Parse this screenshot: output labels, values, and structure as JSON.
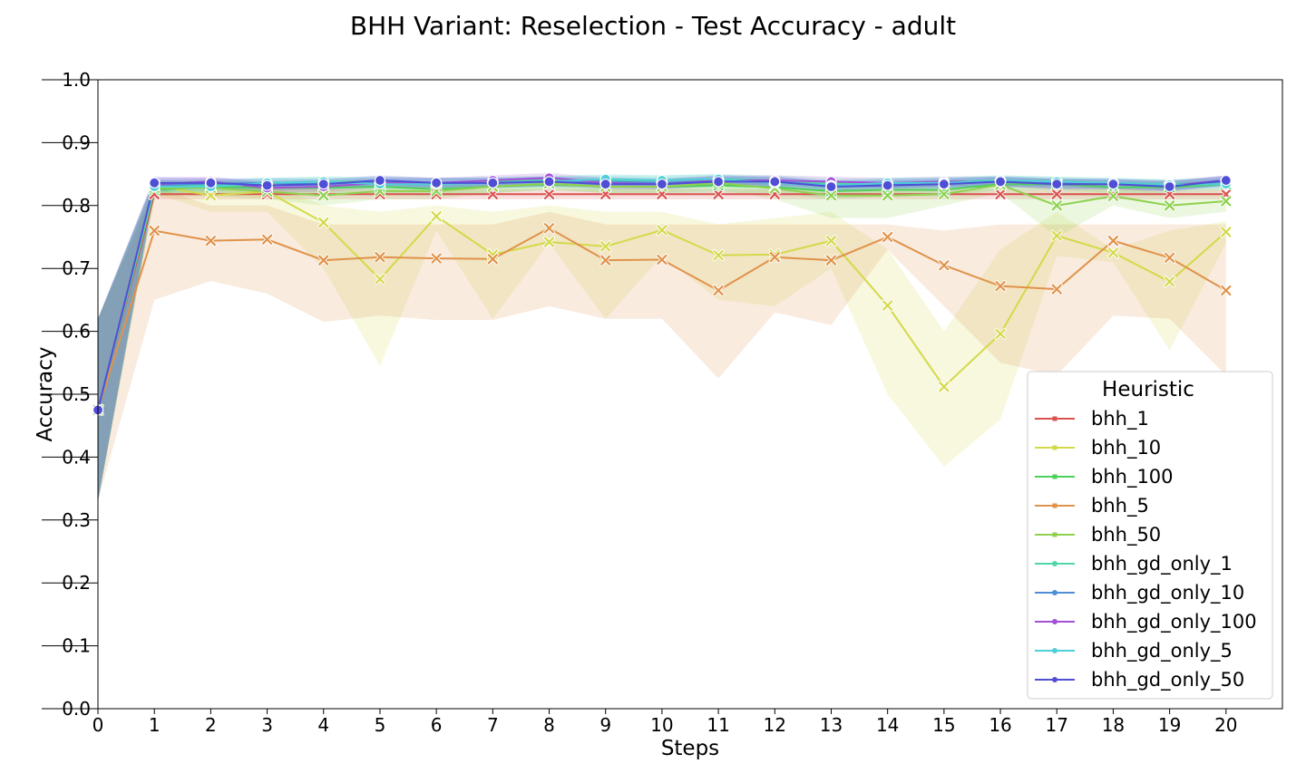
{
  "chart_data": {
    "type": "line",
    "title": "BHH Variant: Reselection - Test Accuracy - adult",
    "xlabel": "Steps",
    "ylabel": "Accuracy",
    "xlim": [
      0,
      21
    ],
    "ylim": [
      0.0,
      1.0
    ],
    "x": [
      0,
      1,
      2,
      3,
      4,
      5,
      6,
      7,
      8,
      9,
      10,
      11,
      12,
      13,
      14,
      15,
      16,
      17,
      18,
      19,
      20
    ],
    "xticks": [
      "0",
      "1",
      "2",
      "3",
      "4",
      "5",
      "6",
      "7",
      "8",
      "9",
      "10",
      "11",
      "12",
      "13",
      "14",
      "15",
      "16",
      "17",
      "18",
      "19",
      "20"
    ],
    "yticks": [
      "0.0",
      "0.1",
      "0.2",
      "0.3",
      "0.4",
      "0.5",
      "0.6",
      "0.7",
      "0.8",
      "0.9",
      "1.0"
    ],
    "grid": false,
    "legend": {
      "title": "Heuristic",
      "position": "lower-right"
    },
    "series": [
      {
        "name": "bhh_1",
        "color": "#d9534f",
        "marker": "x",
        "values": [
          0.475,
          0.818,
          0.818,
          0.818,
          0.818,
          0.818,
          0.818,
          0.818,
          0.818,
          0.818,
          0.818,
          0.818,
          0.818,
          0.818,
          0.818,
          0.818,
          0.818,
          0.818,
          0.818,
          0.818,
          0.818
        ],
        "lower": [
          0.33,
          0.81,
          0.81,
          0.81,
          0.81,
          0.81,
          0.81,
          0.81,
          0.81,
          0.81,
          0.81,
          0.81,
          0.81,
          0.81,
          0.81,
          0.81,
          0.81,
          0.81,
          0.81,
          0.81,
          0.81
        ],
        "upper": [
          0.62,
          0.826,
          0.826,
          0.826,
          0.826,
          0.826,
          0.826,
          0.826,
          0.826,
          0.826,
          0.826,
          0.826,
          0.826,
          0.826,
          0.826,
          0.826,
          0.826,
          0.826,
          0.826,
          0.826,
          0.826
        ]
      },
      {
        "name": "bhh_10",
        "color": "#d4d94a",
        "marker": "x",
        "values": [
          0.475,
          0.832,
          0.816,
          0.822,
          0.773,
          0.683,
          0.783,
          0.722,
          0.742,
          0.735,
          0.761,
          0.721,
          0.722,
          0.744,
          0.641,
          0.512,
          0.596,
          0.752,
          0.725,
          0.679,
          0.758
        ],
        "lower": [
          0.33,
          0.82,
          0.79,
          0.79,
          0.7,
          0.545,
          0.76,
          0.62,
          0.74,
          0.62,
          0.72,
          0.65,
          0.64,
          0.7,
          0.5,
          0.385,
          0.46,
          0.72,
          0.71,
          0.57,
          0.74
        ],
        "upper": [
          0.62,
          0.84,
          0.835,
          0.835,
          0.8,
          0.79,
          0.8,
          0.79,
          0.8,
          0.79,
          0.79,
          0.77,
          0.78,
          0.79,
          0.73,
          0.6,
          0.73,
          0.79,
          0.73,
          0.76,
          0.775
        ]
      },
      {
        "name": "bhh_100",
        "color": "#4cd15a",
        "marker": "x",
        "values": [
          0.475,
          0.825,
          0.83,
          0.828,
          0.828,
          0.83,
          0.826,
          0.83,
          0.834,
          0.83,
          0.83,
          0.832,
          0.829,
          0.823,
          0.825,
          0.825,
          0.834,
          0.834,
          0.829,
          0.829,
          0.834
        ],
        "lower": [
          0.33,
          0.815,
          0.82,
          0.82,
          0.82,
          0.82,
          0.815,
          0.82,
          0.825,
          0.82,
          0.82,
          0.82,
          0.82,
          0.81,
          0.815,
          0.815,
          0.825,
          0.825,
          0.82,
          0.82,
          0.825
        ],
        "upper": [
          0.62,
          0.835,
          0.84,
          0.838,
          0.838,
          0.84,
          0.836,
          0.84,
          0.843,
          0.84,
          0.84,
          0.842,
          0.839,
          0.833,
          0.835,
          0.835,
          0.843,
          0.843,
          0.839,
          0.839,
          0.843
        ]
      },
      {
        "name": "bhh_5",
        "color": "#e0924a",
        "marker": "x",
        "values": [
          0.475,
          0.76,
          0.744,
          0.746,
          0.713,
          0.718,
          0.716,
          0.715,
          0.764,
          0.713,
          0.714,
          0.665,
          0.718,
          0.713,
          0.75,
          0.705,
          0.672,
          0.667,
          0.744,
          0.717,
          0.665
        ],
        "lower": [
          0.33,
          0.65,
          0.68,
          0.66,
          0.615,
          0.625,
          0.618,
          0.618,
          0.64,
          0.62,
          0.62,
          0.525,
          0.63,
          0.61,
          0.73,
          0.64,
          0.55,
          0.53,
          0.625,
          0.62,
          0.53
        ],
        "upper": [
          0.62,
          0.83,
          0.8,
          0.8,
          0.77,
          0.77,
          0.77,
          0.77,
          0.79,
          0.77,
          0.77,
          0.77,
          0.77,
          0.77,
          0.77,
          0.76,
          0.77,
          0.77,
          0.77,
          0.77,
          0.77
        ]
      },
      {
        "name": "bhh_50",
        "color": "#8fd14f",
        "marker": "x",
        "values": [
          0.475,
          0.828,
          0.828,
          0.822,
          0.816,
          0.823,
          0.823,
          0.83,
          0.835,
          0.83,
          0.83,
          0.836,
          0.827,
          0.816,
          0.816,
          0.818,
          0.833,
          0.8,
          0.815,
          0.8,
          0.807
        ],
        "lower": [
          0.33,
          0.815,
          0.815,
          0.81,
          0.8,
          0.81,
          0.81,
          0.82,
          0.825,
          0.82,
          0.82,
          0.825,
          0.81,
          0.78,
          0.78,
          0.8,
          0.82,
          0.75,
          0.8,
          0.78,
          0.79
        ],
        "upper": [
          0.62,
          0.84,
          0.84,
          0.835,
          0.83,
          0.835,
          0.835,
          0.84,
          0.845,
          0.84,
          0.84,
          0.845,
          0.84,
          0.83,
          0.83,
          0.835,
          0.845,
          0.83,
          0.83,
          0.82,
          0.825
        ]
      },
      {
        "name": "bhh_gd_only_1",
        "color": "#4fd6a6",
        "marker": "o",
        "values": [
          0.475,
          0.83,
          0.833,
          0.836,
          0.838,
          0.838,
          0.836,
          0.838,
          0.84,
          0.84,
          0.84,
          0.842,
          0.84,
          0.835,
          0.836,
          0.838,
          0.84,
          0.838,
          0.836,
          0.834,
          0.838
        ],
        "lower": [
          0.33,
          0.82,
          0.825,
          0.828,
          0.83,
          0.83,
          0.828,
          0.83,
          0.832,
          0.832,
          0.832,
          0.834,
          0.832,
          0.827,
          0.828,
          0.83,
          0.832,
          0.83,
          0.828,
          0.826,
          0.83
        ],
        "upper": [
          0.62,
          0.84,
          0.841,
          0.844,
          0.846,
          0.846,
          0.844,
          0.846,
          0.848,
          0.848,
          0.848,
          0.85,
          0.848,
          0.843,
          0.844,
          0.846,
          0.848,
          0.846,
          0.844,
          0.842,
          0.846
        ]
      },
      {
        "name": "bhh_gd_only_10",
        "color": "#4f8fd6",
        "marker": "o",
        "values": [
          0.475,
          0.832,
          0.835,
          0.836,
          0.834,
          0.838,
          0.836,
          0.836,
          0.838,
          0.838,
          0.836,
          0.84,
          0.838,
          0.832,
          0.834,
          0.836,
          0.838,
          0.836,
          0.834,
          0.832,
          0.838
        ],
        "lower": [
          0.33,
          0.822,
          0.827,
          0.828,
          0.826,
          0.83,
          0.828,
          0.828,
          0.83,
          0.83,
          0.828,
          0.832,
          0.83,
          0.824,
          0.826,
          0.828,
          0.83,
          0.828,
          0.826,
          0.824,
          0.83
        ],
        "upper": [
          0.62,
          0.842,
          0.843,
          0.844,
          0.842,
          0.846,
          0.844,
          0.844,
          0.846,
          0.846,
          0.844,
          0.848,
          0.846,
          0.84,
          0.842,
          0.844,
          0.846,
          0.844,
          0.842,
          0.84,
          0.846
        ]
      },
      {
        "name": "bhh_gd_only_100",
        "color": "#a34fd6",
        "marker": "o",
        "values": [
          0.475,
          0.834,
          0.838,
          0.828,
          0.83,
          0.836,
          0.836,
          0.84,
          0.844,
          0.836,
          0.834,
          0.84,
          0.84,
          0.838,
          0.836,
          0.838,
          0.838,
          0.834,
          0.834,
          0.832,
          0.84
        ],
        "lower": [
          0.33,
          0.824,
          0.83,
          0.82,
          0.822,
          0.828,
          0.828,
          0.832,
          0.836,
          0.828,
          0.826,
          0.832,
          0.832,
          0.83,
          0.828,
          0.83,
          0.83,
          0.826,
          0.826,
          0.824,
          0.832
        ],
        "upper": [
          0.62,
          0.844,
          0.846,
          0.836,
          0.838,
          0.844,
          0.844,
          0.848,
          0.852,
          0.844,
          0.842,
          0.848,
          0.848,
          0.846,
          0.844,
          0.846,
          0.846,
          0.842,
          0.842,
          0.84,
          0.848
        ]
      },
      {
        "name": "bhh_gd_only_5",
        "color": "#4fcfd6",
        "marker": "o",
        "values": [
          0.475,
          0.83,
          0.83,
          0.836,
          0.838,
          0.834,
          0.834,
          0.836,
          0.838,
          0.842,
          0.84,
          0.842,
          0.836,
          0.832,
          0.836,
          0.836,
          0.84,
          0.838,
          0.836,
          0.833,
          0.834
        ],
        "lower": [
          0.33,
          0.82,
          0.822,
          0.828,
          0.83,
          0.826,
          0.826,
          0.828,
          0.83,
          0.834,
          0.832,
          0.834,
          0.828,
          0.824,
          0.828,
          0.828,
          0.832,
          0.83,
          0.828,
          0.825,
          0.826
        ],
        "upper": [
          0.62,
          0.84,
          0.838,
          0.844,
          0.846,
          0.842,
          0.842,
          0.844,
          0.846,
          0.85,
          0.848,
          0.85,
          0.844,
          0.84,
          0.844,
          0.844,
          0.848,
          0.846,
          0.844,
          0.841,
          0.842
        ]
      },
      {
        "name": "bhh_gd_only_50",
        "color": "#4f4fd6",
        "marker": "o",
        "values": [
          0.475,
          0.836,
          0.836,
          0.832,
          0.834,
          0.84,
          0.836,
          0.836,
          0.838,
          0.834,
          0.834,
          0.838,
          0.838,
          0.83,
          0.832,
          0.834,
          0.838,
          0.834,
          0.834,
          0.83,
          0.84
        ],
        "lower": [
          0.33,
          0.826,
          0.828,
          0.824,
          0.826,
          0.832,
          0.828,
          0.828,
          0.83,
          0.826,
          0.826,
          0.83,
          0.83,
          0.822,
          0.824,
          0.826,
          0.83,
          0.826,
          0.826,
          0.822,
          0.832
        ],
        "upper": [
          0.62,
          0.846,
          0.844,
          0.84,
          0.842,
          0.848,
          0.844,
          0.844,
          0.846,
          0.842,
          0.842,
          0.846,
          0.846,
          0.838,
          0.84,
          0.842,
          0.846,
          0.842,
          0.842,
          0.838,
          0.848
        ]
      }
    ]
  }
}
